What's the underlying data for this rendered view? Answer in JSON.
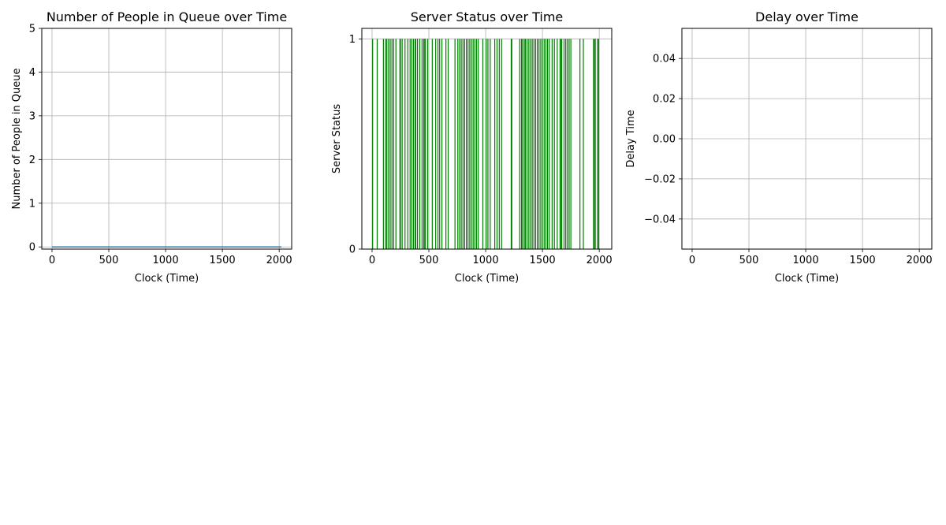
{
  "chart_data": [
    {
      "type": "line",
      "title": "Number of People in Queue over Time",
      "xlabel": "Clock (Time)",
      "ylabel": "Number of People in Queue",
      "xlim": [
        -90,
        2110
      ],
      "ylim": [
        -0.05,
        5
      ],
      "xticks": [
        0,
        500,
        1000,
        1500,
        2000
      ],
      "yticks": [
        0,
        1,
        2,
        3,
        4,
        5
      ],
      "grid": true,
      "series": [
        {
          "color": "#1f77b4",
          "x": [
            0,
            2020
          ],
          "y": [
            0,
            0
          ]
        }
      ]
    },
    {
      "type": "bar",
      "title": "Server Status over Time",
      "xlabel": "Clock (Time)",
      "ylabel": "Server Status",
      "xlim": [
        -90,
        2110
      ],
      "ylim": [
        0,
        1.05
      ],
      "xticks": [
        0,
        500,
        1000,
        1500,
        2000
      ],
      "yticks": [
        0,
        1
      ],
      "grid": true,
      "bar_color": "#008000",
      "bar_value": 1,
      "x": [
        5,
        45,
        100,
        120,
        130,
        145,
        160,
        175,
        190,
        210,
        245,
        250,
        265,
        290,
        315,
        335,
        350,
        365,
        380,
        385,
        400,
        420,
        440,
        455,
        460,
        470,
        490,
        530,
        560,
        580,
        595,
        615,
        650,
        670,
        730,
        755,
        770,
        785,
        800,
        815,
        830,
        845,
        860,
        875,
        890,
        905,
        920,
        935,
        975,
        1005,
        1020,
        1040,
        1080,
        1100,
        1120,
        1140,
        1225,
        1230,
        1300,
        1315,
        1325,
        1340,
        1350,
        1365,
        1380,
        1395,
        1410,
        1425,
        1440,
        1455,
        1470,
        1485,
        1500,
        1515,
        1530,
        1545,
        1560,
        1585,
        1605,
        1630,
        1655,
        1660,
        1670,
        1690,
        1705,
        1720,
        1735,
        1750,
        1830,
        1860,
        1950,
        1955,
        1965,
        1985,
        1995
      ]
    },
    {
      "type": "line",
      "title": "Delay over Time",
      "xlabel": "Clock (Time)",
      "ylabel": "Delay Time",
      "xlim": [
        -90,
        2110
      ],
      "ylim": [
        -0.055,
        0.055
      ],
      "xticks": [
        0,
        500,
        1000,
        1500,
        2000
      ],
      "yticks": [
        0.04,
        0.02,
        0.0,
        -0.02,
        -0.04
      ],
      "ytick_labels": [
        "0.04",
        "0.02",
        "0.00",
        "−0.02",
        "−0.04"
      ],
      "grid": true,
      "series": []
    }
  ]
}
